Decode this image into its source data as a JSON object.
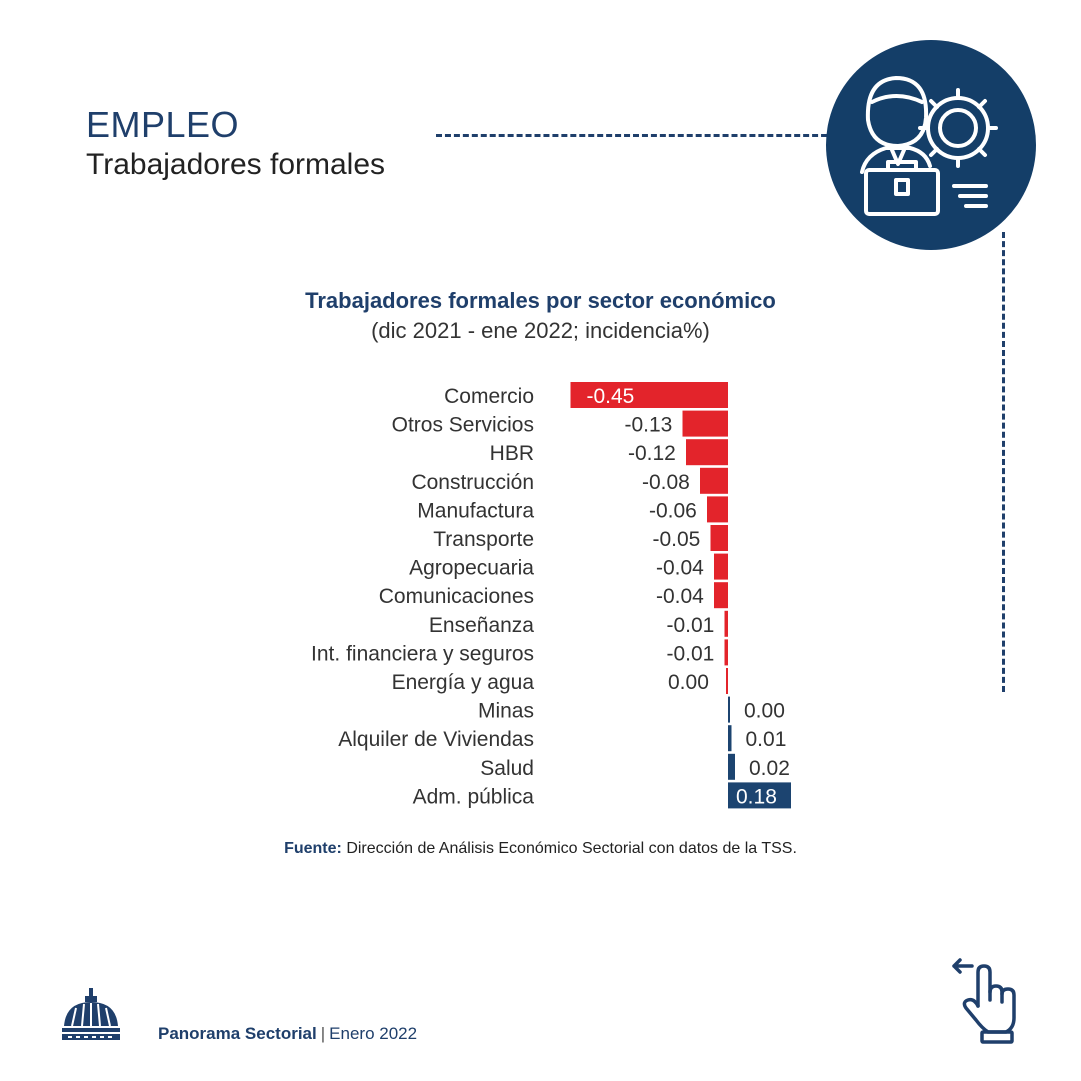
{
  "header": {
    "title": "EMPLEO",
    "subtitle": "Trabajadores formales",
    "icon": "worker-gear-briefcase-icon"
  },
  "chart_data": {
    "type": "bar",
    "orientation": "horizontal",
    "title": "Trabajadores formales por sector económico",
    "subtitle": "(dic 2021 - ene 2022; incidencia%)",
    "categories": [
      "Comercio",
      "Otros Servicios",
      "HBR",
      "Construcción",
      "Manufactura",
      "Transporte",
      "Agropecuaria",
      "Comunicaciones",
      "Enseñanza",
      "Int. financiera y seguros",
      "Energía y agua",
      "Minas",
      "Alquiler de Viviendas",
      "Salud",
      "Adm. pública"
    ],
    "values": [
      -0.45,
      -0.13,
      -0.12,
      -0.08,
      -0.06,
      -0.05,
      -0.04,
      -0.04,
      -0.01,
      -0.01,
      0.0,
      0.0,
      0.01,
      0.02,
      0.18
    ],
    "value_labels": [
      "-0.45",
      "-0.13",
      "-0.12",
      "-0.08",
      "-0.06",
      "-0.05",
      "-0.04",
      "-0.04",
      "-0.01",
      "-0.01",
      "0.00",
      "0.00",
      "0.01",
      "0.02",
      "0.18"
    ],
    "negative_color": "#e3242b",
    "positive_color": "#1c4470",
    "grid": false
  },
  "source": {
    "label": "Fuente:",
    "text": "Dirección de Análisis Económico Sectorial con datos de la TSS."
  },
  "footer": {
    "brand": "Panorama Sectorial",
    "separator": "|",
    "date": "Enero 2022",
    "logo_icon": "government-dome-icon",
    "nav_icon": "swipe-left-hand-icon"
  }
}
